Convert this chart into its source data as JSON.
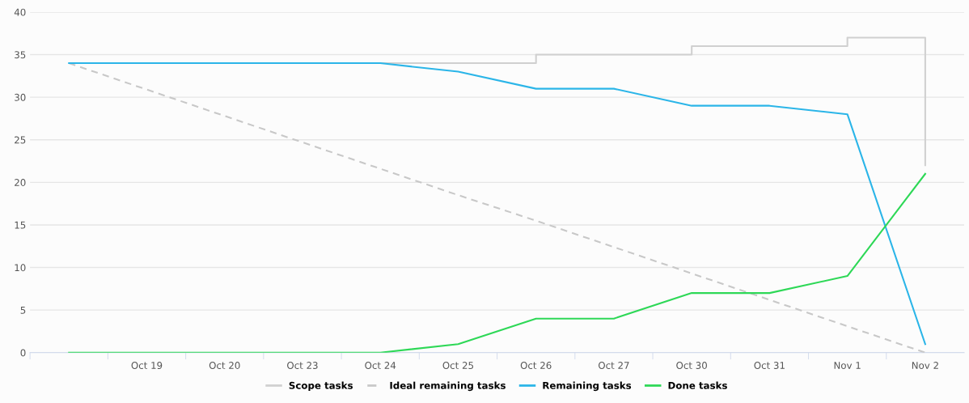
{
  "chart_data": {
    "type": "line",
    "categories": [
      null,
      "Oct 19",
      "Oct 20",
      "Oct 23",
      "Oct 24",
      "Oct 25",
      "Oct 26",
      "Oct 27",
      "Oct 30",
      "Oct 31",
      "Nov 1",
      "Nov 2"
    ],
    "series": [
      {
        "name": "Scope tasks",
        "type": "step",
        "color": "#d0d0d0",
        "line_style": "solid",
        "values": [
          null,
          null,
          null,
          null,
          34,
          34,
          35,
          35,
          36,
          36,
          37,
          22
        ]
      },
      {
        "name": "Ideal remaining tasks",
        "color": "#c8c8c8",
        "line_style": "dashed",
        "values": [
          34,
          30.9,
          27.8,
          24.7,
          21.6,
          18.5,
          15.5,
          12.4,
          9.3,
          6.2,
          3.1,
          0
        ]
      },
      {
        "name": "Remaining tasks",
        "color": "#2bb5e8",
        "line_style": "solid",
        "values": [
          34,
          34,
          34,
          34,
          34,
          33,
          31,
          31,
          29,
          29,
          28,
          1
        ]
      },
      {
        "name": "Done tasks",
        "type": "line",
        "color": "#2ed857",
        "line_style": "solid",
        "values": [
          0,
          0,
          0,
          0,
          0,
          1,
          4,
          4,
          7,
          7,
          9,
          21
        ]
      }
    ],
    "ylim": [
      0,
      40
    ],
    "yticks": [
      0,
      5,
      10,
      15,
      20,
      25,
      30,
      35,
      40
    ],
    "grid": "y",
    "legend": "bottom",
    "marker": "none"
  }
}
